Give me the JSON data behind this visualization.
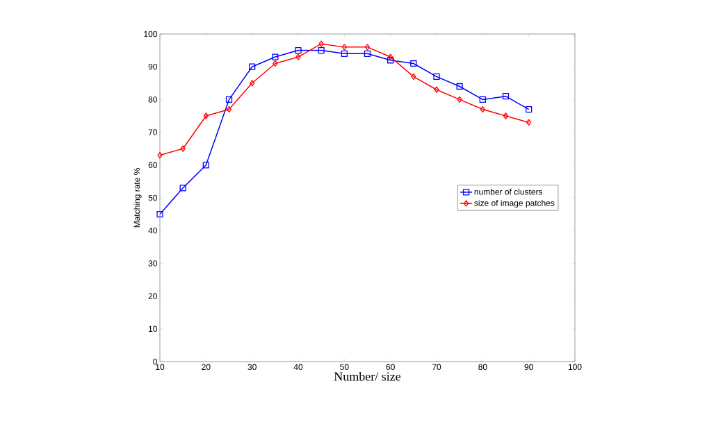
{
  "chart_data": {
    "type": "line",
    "xlabel": "Number/ size",
    "ylabel": "Matching rate %",
    "x": [
      10,
      15,
      20,
      25,
      30,
      35,
      40,
      45,
      50,
      55,
      60,
      65,
      70,
      75,
      80,
      85,
      90
    ],
    "series": [
      {
        "name": "number of clusters",
        "color": "#0000ff",
        "marker": "square",
        "values": [
          45,
          53,
          60,
          80,
          90,
          93,
          95,
          95,
          94,
          94,
          92,
          91,
          87,
          84,
          80,
          81,
          77
        ]
      },
      {
        "name": "size of image patches",
        "color": "#ff0000",
        "marker": "diamond",
        "values": [
          63,
          65,
          75,
          77,
          85,
          91,
          93,
          97,
          96,
          96,
          93,
          87,
          83,
          80,
          77,
          75,
          73
        ]
      }
    ],
    "xlim": [
      10,
      100
    ],
    "ylim": [
      0,
      100
    ],
    "xticks": [
      10,
      20,
      30,
      40,
      50,
      60,
      70,
      80,
      90,
      100
    ],
    "yticks": [
      0,
      10,
      20,
      30,
      40,
      50,
      60,
      70,
      80,
      90,
      100
    ],
    "grid": false,
    "legend": "right",
    "line_style": "solid"
  }
}
